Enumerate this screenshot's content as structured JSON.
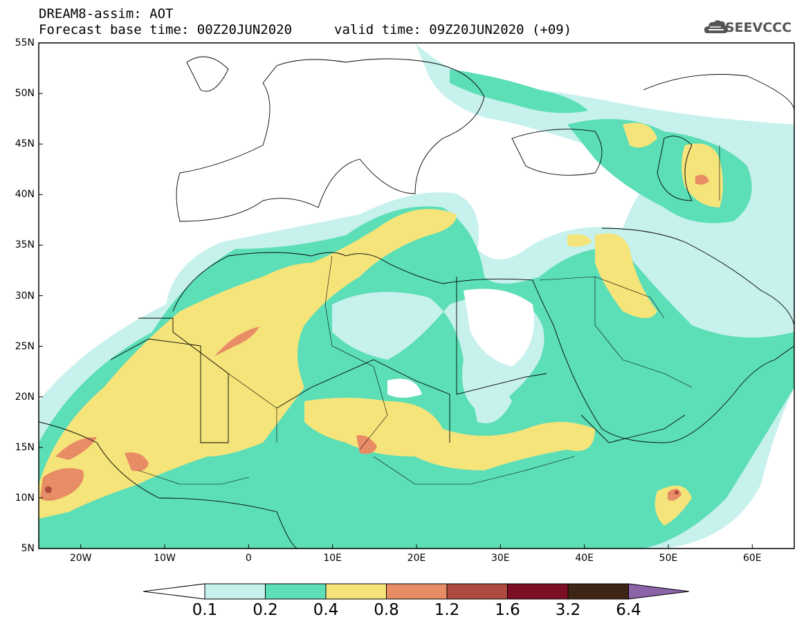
{
  "header": {
    "title_line1": "DREAM8-assim: AOT",
    "title_line2": "Forecast base time: 00Z20JUN2020",
    "valid_time": "valid time: 09Z20JUN2020 (+09)",
    "logo_text": "SEEVCCC"
  },
  "map": {
    "region": "North Africa, Middle East and Europe",
    "lat_labels": [
      "55N",
      "50N",
      "45N",
      "40N",
      "35N",
      "30N",
      "25N",
      "20N",
      "15N",
      "10N",
      "5N"
    ],
    "lon_labels": [
      "20W",
      "10W",
      "0",
      "10E",
      "20E",
      "30E",
      "40E",
      "50E",
      "60E"
    ],
    "lon_range": [
      -25,
      65
    ],
    "lat_range": [
      5,
      55
    ]
  },
  "colorbar": {
    "levels": [
      "0.1",
      "0.2",
      "0.4",
      "0.8",
      "1.2",
      "1.6",
      "3.2",
      "6.4"
    ],
    "colors": [
      "#c6f1ec",
      "#5cdeb7",
      "#f5e47a",
      "#e88c66",
      "#ad4b3e",
      "#7d0f24",
      "#3e2414",
      "#8c64aa"
    ]
  }
}
